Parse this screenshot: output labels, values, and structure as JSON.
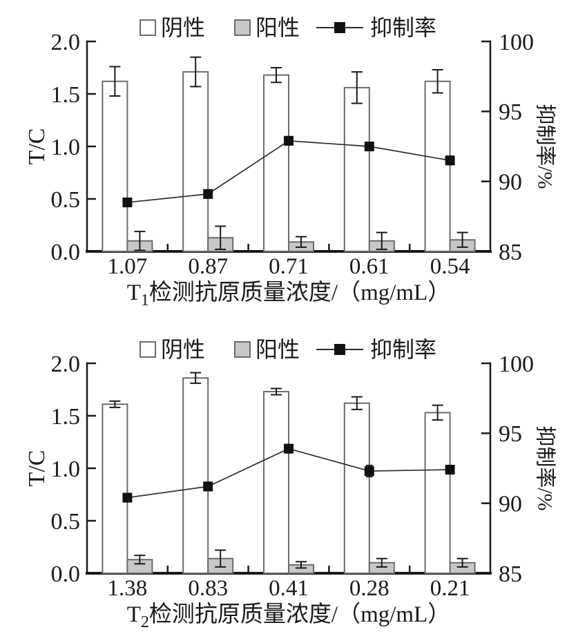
{
  "figure": {
    "background": "#ffffff"
  },
  "colors": {
    "axis": "#1a1a1a",
    "text": "#1a1a1a",
    "bar_border": "#6b6b6b",
    "negative_fill": "#ffffff",
    "positive_fill": "#c7c7c7",
    "line": "#2b2b2b",
    "marker": "#111111"
  },
  "chart_data": [
    {
      "type": "bar+line",
      "legend": [
        "阴性",
        "阳性",
        "抑制率"
      ],
      "legend_position": "top-center",
      "grid": false,
      "categories": [
        "1.07",
        "0.87",
        "0.71",
        "0.61",
        "0.54"
      ],
      "xlabel": {
        "base": "T",
        "sub": "1",
        "rest": "检测抗原质量浓度/（mg/mL）"
      },
      "ylabel_left": "T/C",
      "ylabel_right": "抑制率/%",
      "ylim_left": [
        0.0,
        2.0
      ],
      "ylim_right": [
        85,
        100
      ],
      "yticks_left": [
        "0.0",
        "0.5",
        "1.0",
        "1.5",
        "2.0"
      ],
      "yticks_right": [
        "85",
        "90",
        "95",
        "100"
      ],
      "series": [
        {
          "name": "阴性",
          "type": "bar",
          "axis": "left",
          "values": [
            1.62,
            1.71,
            1.68,
            1.56,
            1.62
          ],
          "errors": [
            0.14,
            0.14,
            0.07,
            0.15,
            0.11
          ]
        },
        {
          "name": "阳性",
          "type": "bar",
          "axis": "left",
          "values": [
            0.1,
            0.13,
            0.09,
            0.1,
            0.11
          ],
          "errors": [
            0.09,
            0.11,
            0.05,
            0.08,
            0.07
          ]
        },
        {
          "name": "抑制率",
          "type": "line",
          "axis": "right",
          "values": [
            88.5,
            89.1,
            92.9,
            92.5,
            91.5
          ],
          "errors": [
            0.3,
            0.3,
            0.3,
            0.3,
            0.3
          ]
        }
      ]
    },
    {
      "type": "bar+line",
      "legend": [
        "阴性",
        "阳性",
        "抑制率"
      ],
      "legend_position": "top-center",
      "grid": false,
      "categories": [
        "1.38",
        "0.83",
        "0.41",
        "0.28",
        "0.21"
      ],
      "xlabel": {
        "base": "T",
        "sub": "2",
        "rest": "检测抗原质量浓度/（mg/mL）"
      },
      "ylabel_left": "T/C",
      "ylabel_right": "抑制率/%",
      "ylim_left": [
        0.0,
        2.0
      ],
      "ylim_right": [
        85,
        100
      ],
      "yticks_left": [
        "0.0",
        "0.5",
        "1.0",
        "1.5",
        "2.0"
      ],
      "yticks_right": [
        "85",
        "90",
        "95",
        "100"
      ],
      "series": [
        {
          "name": "阴性",
          "type": "bar",
          "axis": "left",
          "values": [
            1.61,
            1.86,
            1.73,
            1.62,
            1.53
          ],
          "errors": [
            0.03,
            0.05,
            0.03,
            0.06,
            0.07
          ]
        },
        {
          "name": "阳性",
          "type": "bar",
          "axis": "left",
          "values": [
            0.13,
            0.14,
            0.08,
            0.1,
            0.1
          ],
          "errors": [
            0.04,
            0.08,
            0.03,
            0.04,
            0.04
          ]
        },
        {
          "name": "抑制率",
          "type": "line",
          "axis": "right",
          "values": [
            90.4,
            91.2,
            93.9,
            92.3,
            92.4
          ],
          "errors": [
            0.3,
            0.3,
            0.3,
            0.4,
            0.3
          ]
        }
      ]
    }
  ]
}
